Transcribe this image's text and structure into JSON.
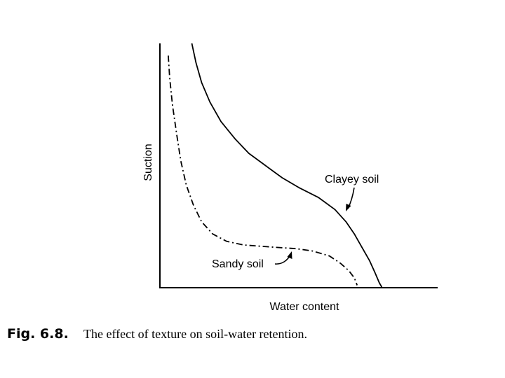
{
  "chart_data": {
    "type": "line",
    "title": "",
    "xlabel": "Water content",
    "ylabel": "Suction",
    "xlim": [
      0,
      100
    ],
    "ylim": [
      0,
      100
    ],
    "grid": false,
    "legend": "none",
    "series": [
      {
        "name": "Clayey soil",
        "style": "solid",
        "x": [
          11.5,
          13,
          15,
          18,
          22,
          27,
          32,
          38,
          44,
          50,
          57,
          63,
          67,
          70,
          73,
          75.5,
          77.5,
          79,
          80
        ],
        "y": [
          100,
          92,
          84,
          76,
          68,
          61,
          55,
          50,
          45,
          41,
          37,
          32,
          27,
          22,
          16,
          11,
          6,
          2,
          0
        ]
      },
      {
        "name": "Sandy soil",
        "style": "dash-dot",
        "x": [
          3,
          3.5,
          4.5,
          6,
          7.5,
          9.5,
          12,
          15,
          19,
          24,
          30,
          36,
          42,
          49,
          55,
          61,
          65,
          68,
          70,
          71
        ],
        "y": [
          95,
          86,
          75,
          63,
          52,
          42,
          34,
          27,
          22,
          19,
          17.5,
          17,
          16.5,
          16,
          15,
          13,
          10,
          7,
          4,
          1
        ]
      }
    ],
    "annotations": [
      "Clayey soil",
      "Sandy soil"
    ]
  },
  "caption": {
    "label": "Fig. 6.8.",
    "text": "The effect of texture on soil-water retention."
  }
}
